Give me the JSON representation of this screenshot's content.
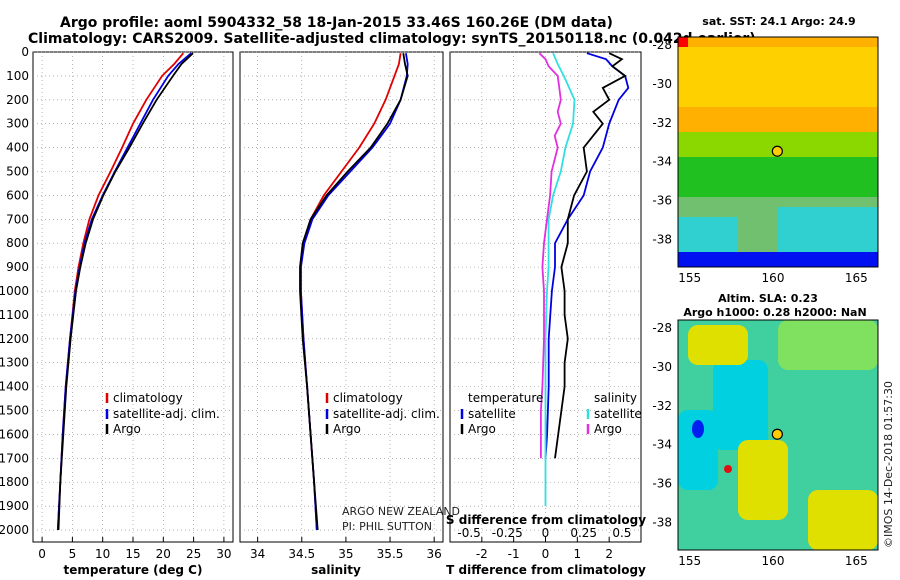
{
  "title_line1": "Argo profile: aoml 5904332_58 18-Jan-2015 33.46S 160.26E (DM data)",
  "title_line2": "Climatology: CARS2009. Satellite-adjusted climatology: synTS_20150118.nc (0.042d earlier)",
  "credit_line1": "ARGO NEW ZEALAND",
  "credit_line2": "PI: PHIL SUTTON",
  "imos_stamp": "©IMOS 14-Dec-2018 01:57:30",
  "colors": {
    "climatology": "#e00000",
    "satellite": "#0000e0",
    "argo": "#000000",
    "s_satellite": "#30e0e0",
    "s_argo": "#e030e0"
  },
  "chart_data": [
    {
      "type": "line",
      "id": "temperature",
      "xlabel": "temperature (deg C)",
      "ylim": [
        2050,
        0
      ],
      "xlim": [
        -1.5,
        31.5
      ],
      "xticks": [
        0,
        5,
        10,
        15,
        20,
        25,
        30
      ],
      "yticks": [
        0,
        100,
        200,
        300,
        400,
        500,
        600,
        700,
        800,
        900,
        1000,
        1100,
        1200,
        1300,
        1400,
        1500,
        1600,
        1700,
        1800,
        1900,
        2000
      ],
      "legend": [
        "climatology",
        "satellite-adj. clim.",
        "Argo"
      ],
      "series": [
        {
          "name": "climatology",
          "color": "#e00000",
          "depth": [
            5,
            50,
            100,
            200,
            300,
            400,
            500,
            600,
            700,
            800,
            900,
            1000,
            1200,
            1400,
            1600,
            1800,
            2000
          ],
          "values": [
            23.3,
            21.8,
            19.8,
            17.2,
            15.0,
            13.2,
            11.3,
            9.3,
            7.8,
            6.8,
            6.0,
            5.4,
            4.6,
            3.9,
            3.4,
            3.0,
            2.6
          ]
        },
        {
          "name": "satellite-adj. clim.",
          "color": "#0000e0",
          "depth": [
            5,
            50,
            100,
            200,
            300,
            400,
            500,
            600,
            700,
            800,
            900,
            1000,
            1200,
            1400,
            1600,
            1800,
            2000
          ],
          "values": [
            24.6,
            22.5,
            20.8,
            18.3,
            16.2,
            14.1,
            12.0,
            10.0,
            8.2,
            7.0,
            6.2,
            5.5,
            4.6,
            3.9,
            3.4,
            3.0,
            2.6
          ]
        },
        {
          "name": "Argo",
          "color": "#000000",
          "depth": [
            5,
            50,
            100,
            200,
            300,
            400,
            500,
            600,
            700,
            800,
            900,
            1000,
            1200,
            1400,
            1600,
            1800,
            2000
          ],
          "values": [
            24.9,
            23.0,
            21.6,
            18.9,
            16.6,
            14.4,
            12.1,
            10.1,
            8.4,
            7.2,
            6.3,
            5.6,
            4.7,
            4.0,
            3.5,
            3.0,
            2.7
          ]
        }
      ]
    },
    {
      "type": "line",
      "id": "salinity",
      "xlabel": "salinity",
      "ylim": [
        2050,
        0
      ],
      "xlim": [
        33.8,
        36.1
      ],
      "xticks": [
        34,
        34.5,
        35,
        35.5,
        36
      ],
      "legend": [
        "climatology",
        "satellite-adj. clim.",
        "Argo"
      ],
      "series": [
        {
          "name": "climatology",
          "color": "#e00000",
          "depth": [
            5,
            50,
            100,
            200,
            300,
            400,
            500,
            600,
            700,
            800,
            900,
            1000,
            1200,
            1400,
            1600,
            1800,
            2000
          ],
          "values": [
            35.62,
            35.6,
            35.55,
            35.45,
            35.32,
            35.15,
            34.95,
            34.75,
            34.6,
            34.52,
            34.49,
            34.49,
            34.52,
            34.56,
            34.6,
            34.64,
            34.67
          ]
        },
        {
          "name": "satellite-adj. clim.",
          "color": "#0000e0",
          "depth": [
            5,
            50,
            100,
            200,
            300,
            400,
            500,
            600,
            700,
            800,
            900,
            1000,
            1200,
            1400,
            1600,
            1800,
            2000
          ],
          "values": [
            35.68,
            35.7,
            35.69,
            35.62,
            35.5,
            35.3,
            35.05,
            34.8,
            34.62,
            34.53,
            34.49,
            34.49,
            34.52,
            34.56,
            34.6,
            34.64,
            34.67
          ]
        },
        {
          "name": "Argo",
          "color": "#000000",
          "depth": [
            5,
            50,
            100,
            200,
            300,
            400,
            500,
            600,
            700,
            800,
            900,
            1000,
            1200,
            1400,
            1600,
            1800,
            2000
          ],
          "values": [
            35.65,
            35.67,
            35.7,
            35.62,
            35.47,
            35.28,
            35.02,
            34.78,
            34.6,
            34.51,
            34.48,
            34.48,
            34.51,
            34.56,
            34.6,
            34.64,
            34.68
          ]
        }
      ]
    },
    {
      "type": "line",
      "id": "differences",
      "xlabel": "T difference from climatology",
      "xlabel_top": "S difference from climatology",
      "ylim": [
        2050,
        0
      ],
      "xlim": [
        -3,
        3
      ],
      "xticks": [
        -2,
        -1,
        0,
        1,
        2
      ],
      "xticks_top_values": [
        -0.5,
        -0.25,
        0,
        0.25,
        0.5
      ],
      "xticks_top_labels": [
        "-0.5",
        "-0.25",
        "0",
        "0.25",
        "0.5"
      ],
      "legend_left_title": "temperature",
      "legend_left": [
        "satellite",
        "Argo"
      ],
      "legend_right_title": "salinity",
      "legend_right": [
        "satellite",
        "Argo"
      ],
      "series": [
        {
          "name": "temperature satellite",
          "color": "#0000e0",
          "depth": [
            5,
            30,
            60,
            100,
            150,
            200,
            300,
            400,
            500,
            600,
            700,
            800,
            900,
            1000,
            1200,
            1400,
            1600,
            1700
          ],
          "values": [
            1.3,
            1.9,
            2.1,
            2.5,
            2.6,
            2.3,
            2.0,
            1.8,
            1.4,
            1.2,
            0.7,
            0.3,
            0.3,
            0.2,
            0.1,
            0.1,
            0.05,
            0.0
          ]
        },
        {
          "name": "temperature Argo",
          "color": "#000000",
          "depth": [
            5,
            30,
            60,
            100,
            150,
            200,
            250,
            300,
            400,
            500,
            600,
            700,
            800,
            900,
            1000,
            1100,
            1200,
            1300,
            1400,
            1500,
            1600,
            1700
          ],
          "values": [
            2.0,
            2.4,
            2.1,
            2.5,
            1.8,
            2.0,
            1.5,
            1.8,
            1.2,
            1.3,
            0.9,
            0.7,
            0.7,
            0.5,
            0.6,
            0.6,
            0.7,
            0.6,
            0.6,
            0.5,
            0.4,
            0.3
          ]
        },
        {
          "name": "salinity satellite",
          "color": "#30e0e0",
          "depth": [
            5,
            50,
            100,
            200,
            300,
            400,
            500,
            600,
            700,
            800,
            900,
            1000,
            1200,
            1400,
            1600,
            1800,
            1900
          ],
          "values": [
            0.05,
            0.08,
            0.12,
            0.19,
            0.18,
            0.13,
            0.1,
            0.05,
            0.02,
            0.02,
            0.02,
            0.01,
            0.0,
            0.0,
            0.0,
            0.0,
            0.0
          ]
        },
        {
          "name": "salinity Argo",
          "color": "#e030e0",
          "depth": [
            5,
            30,
            60,
            100,
            150,
            200,
            250,
            300,
            350,
            400,
            500,
            600,
            700,
            800,
            900,
            1000,
            1200,
            1400,
            1500,
            1600,
            1700
          ],
          "values": [
            -0.04,
            0.0,
            0.02,
            0.08,
            0.09,
            0.1,
            0.08,
            0.1,
            0.06,
            0.08,
            0.04,
            0.03,
            0.01,
            -0.01,
            -0.02,
            -0.01,
            -0.01,
            -0.02,
            -0.03,
            -0.03,
            -0.03
          ]
        }
      ]
    },
    {
      "type": "heatmap",
      "id": "sst_map",
      "title": "sat. SST: 24.1 Argo: 24.9",
      "xlim": [
        154.3,
        166.3
      ],
      "ylim": [
        -39.4,
        -27.6
      ],
      "xticks": [
        155,
        160,
        165
      ],
      "yticks": [
        -28,
        -30,
        -32,
        -34,
        -36,
        -38
      ],
      "marker": {
        "lon": 160.26,
        "lat": -33.46
      }
    },
    {
      "type": "heatmap",
      "id": "sla_map",
      "title": "Altim. SLA: 0.23",
      "subtitle": "Argo h1000: 0.28 h2000: NaN",
      "xlim": [
        154.3,
        166.3
      ],
      "ylim": [
        -39.4,
        -27.6
      ],
      "xticks": [
        155,
        160,
        165
      ],
      "yticks": [
        -28,
        -30,
        -32,
        -34,
        -36,
        -38
      ],
      "marker": {
        "lon": 160.26,
        "lat": -33.46
      }
    }
  ]
}
